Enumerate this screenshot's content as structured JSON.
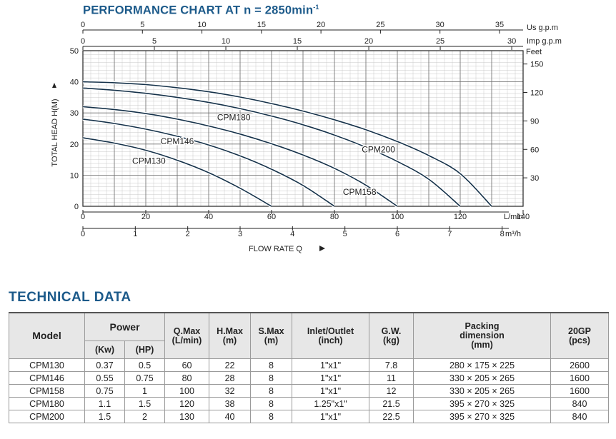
{
  "chart_title": {
    "text": "PERFORMANCE CHART AT n = 2850min",
    "sup": "-1"
  },
  "chart_data": {
    "type": "line",
    "ylabel": "TOTAL HEAD H(M)",
    "xlabel": "FLOW RATE Q",
    "ylim": [
      0,
      50
    ],
    "xlim": [
      0,
      140
    ],
    "grid": true,
    "y_ticks": [
      0,
      10,
      20,
      30,
      40,
      50
    ],
    "x_ticks_lmin": [
      0,
      20,
      40,
      60,
      80,
      100,
      120,
      140
    ],
    "x_unit_lmin": "L/min",
    "x_ticks_m3h": [
      0,
      1,
      2,
      3,
      4,
      5,
      6,
      7,
      8
    ],
    "x_unit_m3h": "m³/h",
    "top_usgpm_ticks": [
      0,
      5,
      10,
      15,
      20,
      25,
      30,
      35
    ],
    "top_usgpm_unit": "Us g.p.m",
    "top_impgpm_ticks": [
      0,
      5,
      10,
      15,
      20,
      25,
      30
    ],
    "top_impgpm_unit": "Imp g.p.m",
    "right_feet_ticks": [
      30,
      60,
      90,
      120,
      150
    ],
    "right_feet_unit": "Feet",
    "series": [
      {
        "name": "CPM130",
        "x": [
          0,
          10,
          20,
          30,
          40,
          50,
          60
        ],
        "y": [
          22,
          20.3,
          18.0,
          14.8,
          10.8,
          5.8,
          0
        ]
      },
      {
        "name": "CPM146",
        "x": [
          0,
          10,
          20,
          30,
          40,
          50,
          60,
          70,
          80
        ],
        "y": [
          28,
          26.6,
          24.8,
          22.5,
          19.7,
          16.2,
          11.9,
          6.7,
          0
        ]
      },
      {
        "name": "CPM158",
        "x": [
          0,
          10,
          20,
          30,
          40,
          50,
          60,
          70,
          80,
          90,
          100
        ],
        "y": [
          32,
          31.1,
          29.8,
          28.0,
          25.8,
          23.2,
          20.1,
          16.5,
          12.2,
          6.8,
          0
        ]
      },
      {
        "name": "CPM180",
        "x": [
          0,
          10,
          20,
          30,
          40,
          50,
          60,
          70,
          80,
          90,
          100,
          110,
          120
        ],
        "y": [
          38,
          37.3,
          36.3,
          35.0,
          33.4,
          31.4,
          29.0,
          26.2,
          22.9,
          19.0,
          14.4,
          8.7,
          0
        ]
      },
      {
        "name": "CPM200",
        "x": [
          0,
          10,
          20,
          30,
          40,
          50,
          60,
          70,
          80,
          90,
          100,
          110,
          120,
          130
        ],
        "y": [
          40,
          39.7,
          39.1,
          38.1,
          36.8,
          35.1,
          33.0,
          30.6,
          27.8,
          24.6,
          20.8,
          16.3,
          10.5,
          0
        ]
      }
    ]
  },
  "tech": {
    "title": "TECHNICAL DATA",
    "headers": {
      "model": "Model",
      "power": "Power",
      "kw": "(Kw)",
      "hp": "(HP)",
      "qmax_1": "Q.Max",
      "qmax_2": "(L/min)",
      "hmax_1": "H.Max",
      "hmax_2": "(m)",
      "smax_1": "S.Max",
      "smax_2": "(m)",
      "inout_1": "Inlet/Outlet",
      "inout_2": "(inch)",
      "gw_1": "G.W.",
      "gw_2": "(kg)",
      "pack_1": "Packing",
      "pack_2": "dimension",
      "pack_3": "(mm)",
      "gp_1": "20GP",
      "gp_2": "(pcs)"
    },
    "rows": [
      [
        "CPM130",
        "0.37",
        "0.5",
        "60",
        "22",
        "8",
        "1\"x1\"",
        "7.8",
        "280 × 175 × 225",
        "2600"
      ],
      [
        "CPM146",
        "0.55",
        "0.75",
        "80",
        "28",
        "8",
        "1\"x1\"",
        "11",
        "330 × 205 × 265",
        "1600"
      ],
      [
        "CPM158",
        "0.75",
        "1",
        "100",
        "32",
        "8",
        "1\"x1\"",
        "12",
        "330 × 205 × 265",
        "1600"
      ],
      [
        "CPM180",
        "1.1",
        "1.5",
        "120",
        "38",
        "8",
        "1.25\"x1\"",
        "21.5",
        "395 × 270 × 325",
        "840"
      ],
      [
        "CPM200",
        "1.5",
        "2",
        "130",
        "40",
        "8",
        "1\"x1\"",
        "22.5",
        "395 × 270 × 325",
        "840"
      ]
    ]
  }
}
